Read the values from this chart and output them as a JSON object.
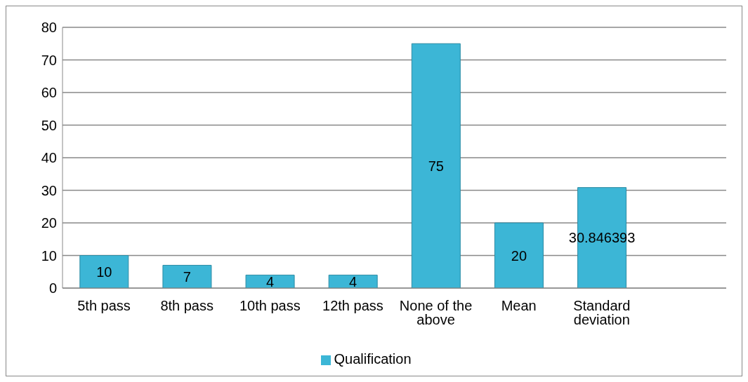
{
  "chart_data": {
    "type": "bar",
    "categories": [
      "5th pass",
      "8th pass",
      "10th pass",
      "12th pass",
      "None of the above",
      "Mean",
      "Standard deviation",
      null
    ],
    "series": [
      {
        "name": "Qualification",
        "color": "#3cb6d6",
        "values": [
          10,
          7,
          4,
          4,
          75,
          20,
          30.846393,
          null
        ]
      }
    ],
    "ylim": [
      0,
      80
    ],
    "yticks": [
      0,
      10,
      20,
      30,
      40,
      50,
      60,
      70,
      80
    ],
    "grid": "y",
    "legend": "bottom",
    "data_labels": true
  }
}
